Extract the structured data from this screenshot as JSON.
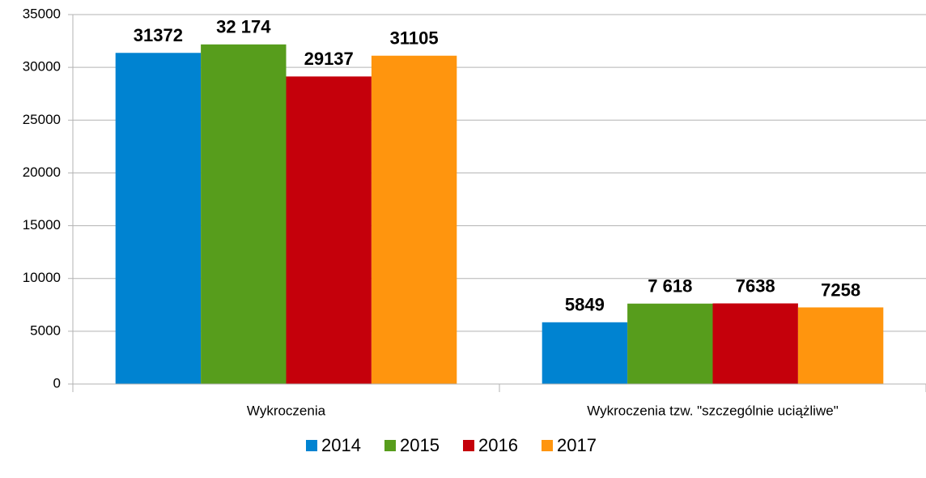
{
  "chart_data": {
    "type": "bar",
    "categories": [
      "Wykroczenia",
      "Wykroczenia tzw. \"szczególnie uciążliwe\""
    ],
    "series": [
      {
        "name": "2014",
        "color": "#0083d1",
        "values": [
          31372,
          5849
        ]
      },
      {
        "name": "2015",
        "color": "#579d1c",
        "values": [
          32174,
          7618
        ],
        "value_labels": [
          "32 174",
          "7 618"
        ]
      },
      {
        "name": "2016",
        "color": "#c5000b",
        "values": [
          29137,
          7638
        ]
      },
      {
        "name": "2017",
        "color": "#ff950e",
        "values": [
          31105,
          7258
        ]
      }
    ],
    "ylim": [
      0,
      35000
    ],
    "yticks": [
      0,
      5000,
      10000,
      15000,
      20000,
      25000,
      30000,
      35000
    ],
    "grid": true,
    "legend": "bottom"
  }
}
